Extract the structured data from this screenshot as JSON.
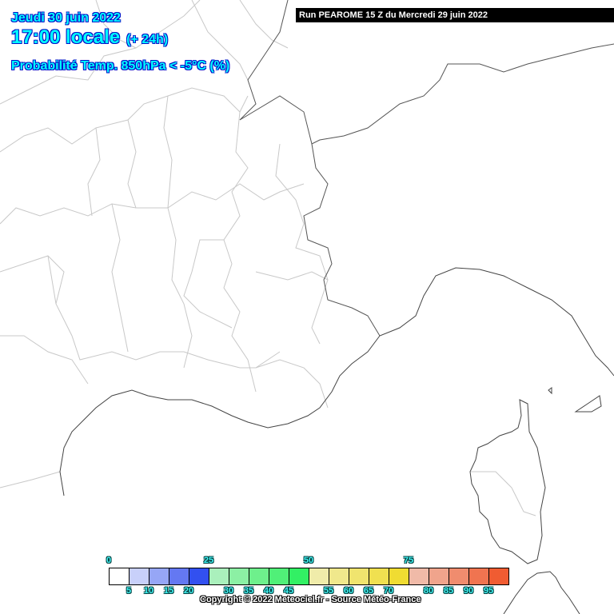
{
  "header": {
    "date": "Jeudi 30 juin 2022",
    "time": "17:00 locale",
    "offset": "(+ 24h)",
    "parameter": "Probabilité Temp. 850hPa < -5°C (%)",
    "run": "Run PEAROME 15 Z du Mercredi 29 juin 2022"
  },
  "legend": {
    "top_labels": [
      "0",
      "25",
      "50",
      "75"
    ],
    "bottom_labels": [
      "5",
      "10",
      "15",
      "20",
      "30",
      "35",
      "40",
      "45",
      "55",
      "60",
      "65",
      "70",
      "80",
      "85",
      "90",
      "95"
    ],
    "colors": [
      "#ffffff",
      "#c8d0fa",
      "#96a6f6",
      "#6478f2",
      "#3250f0",
      "#aaf0bc",
      "#8cf0a4",
      "#6ef08c",
      "#50f078",
      "#32f064",
      "#f0ecaa",
      "#f0e88c",
      "#f0e46e",
      "#f0e050",
      "#f0dc32",
      "#f0baa8",
      "#f0a48c",
      "#f08c6e",
      "#f07450",
      "#f05c32"
    ]
  },
  "copyright": "Copyright © 2022 Meteociel.fr - Source Météo-France",
  "map": {
    "region": "Sud-Est France / Corse",
    "probability_field": "0% everywhere (no shading)"
  }
}
